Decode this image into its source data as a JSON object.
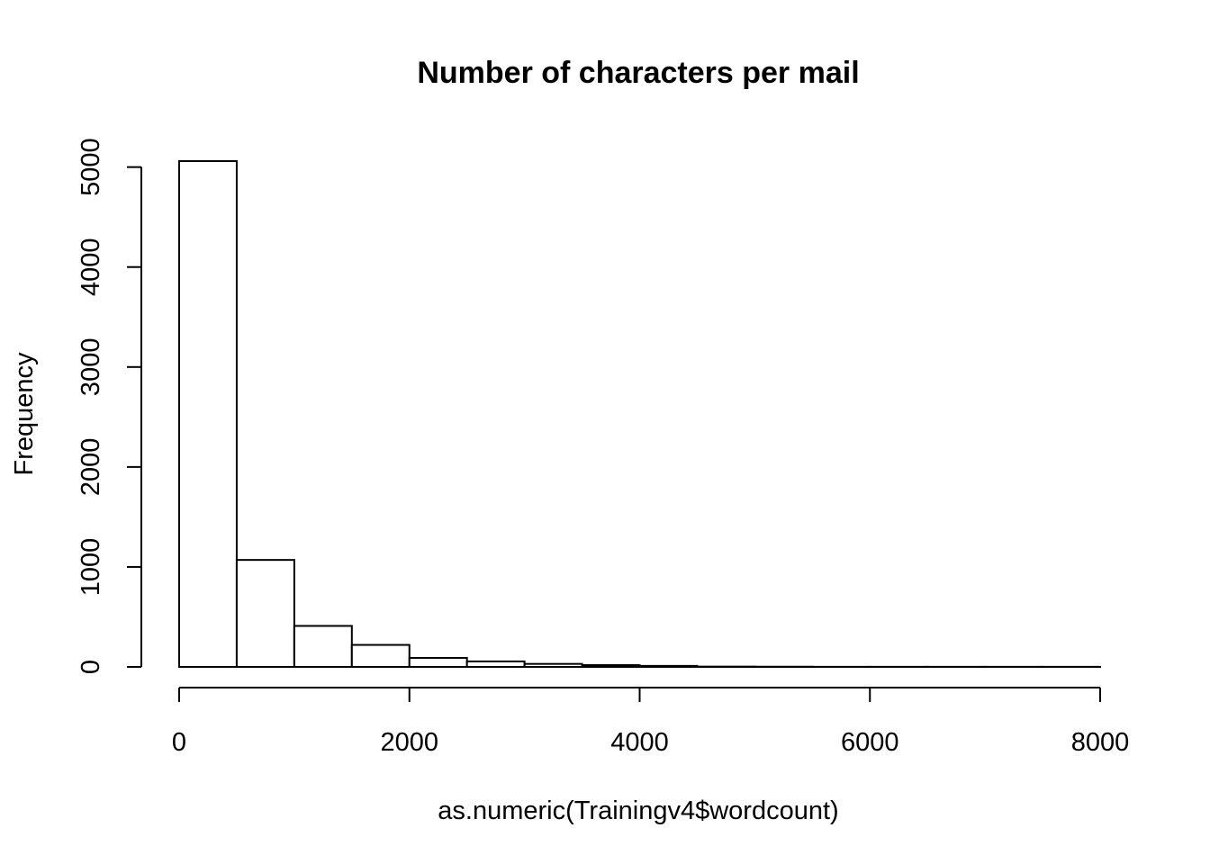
{
  "chart_data": {
    "type": "bar",
    "title": "Number of characters per mail",
    "xlabel": "as.numeric(Trainingv4$wordcount)",
    "ylabel": "Frequency",
    "bin_edges": [
      0,
      500,
      1000,
      1500,
      2000,
      2500,
      3000,
      3500,
      4000,
      4500,
      5000,
      5500,
      6000,
      6500,
      7000,
      7500,
      8000
    ],
    "values": [
      5060,
      1070,
      410,
      220,
      90,
      55,
      30,
      18,
      10,
      3,
      2,
      1,
      1,
      1,
      1,
      1
    ],
    "xlim": [
      0,
      8000
    ],
    "ylim": [
      0,
      5060
    ],
    "x_ticks": [
      0,
      2000,
      4000,
      6000,
      8000
    ],
    "x_tick_labels": [
      "0",
      "2000",
      "4000",
      "6000",
      "8000"
    ],
    "y_ticks": [
      0,
      1000,
      2000,
      3000,
      4000,
      5000
    ],
    "y_tick_labels": [
      "0",
      "1000",
      "2000",
      "3000",
      "4000",
      "5000"
    ],
    "grid": false,
    "bar_fill": "#ffffff",
    "bar_stroke": "#000000"
  }
}
